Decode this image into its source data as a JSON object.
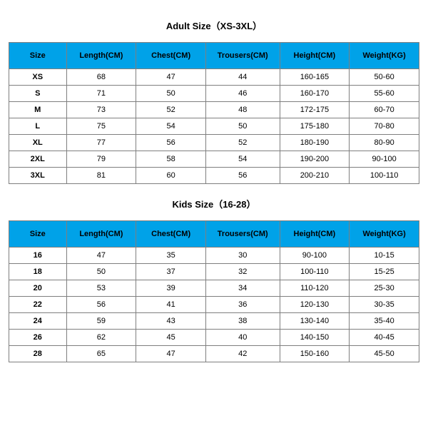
{
  "styling": {
    "header_bg": "#00a2e8",
    "border_color": "#7f7f7f",
    "text_color": "#000000",
    "title_fontsize": 13,
    "header_fontsize": 11,
    "cell_fontsize": 11,
    "col_widths_pct": [
      14,
      17,
      17,
      18,
      17,
      17
    ]
  },
  "adult": {
    "title": "Adult Size（XS-3XL）",
    "columns": [
      "Size",
      "Length(CM)",
      "Chest(CM)",
      "Trousers(CM)",
      "Height(CM)",
      "Weight(KG)"
    ],
    "rows": [
      [
        "XS",
        "68",
        "47",
        "44",
        "160-165",
        "50-60"
      ],
      [
        "S",
        "71",
        "50",
        "46",
        "160-170",
        "55-60"
      ],
      [
        "M",
        "73",
        "52",
        "48",
        "172-175",
        "60-70"
      ],
      [
        "L",
        "75",
        "54",
        "50",
        "175-180",
        "70-80"
      ],
      [
        "XL",
        "77",
        "56",
        "52",
        "180-190",
        "80-90"
      ],
      [
        "2XL",
        "79",
        "58",
        "54",
        "190-200",
        "90-100"
      ],
      [
        "3XL",
        "81",
        "60",
        "56",
        "200-210",
        "100-110"
      ]
    ]
  },
  "kids": {
    "title": "Kids Size（16-28）",
    "columns": [
      "Size",
      "Length(CM)",
      "Chest(CM)",
      "Trousers(CM)",
      "Height(CM)",
      "Weight(KG)"
    ],
    "rows": [
      [
        "16",
        "47",
        "35",
        "30",
        "90-100",
        "10-15"
      ],
      [
        "18",
        "50",
        "37",
        "32",
        "100-110",
        "15-25"
      ],
      [
        "20",
        "53",
        "39",
        "34",
        "110-120",
        "25-30"
      ],
      [
        "22",
        "56",
        "41",
        "36",
        "120-130",
        "30-35"
      ],
      [
        "24",
        "59",
        "43",
        "38",
        "130-140",
        "35-40"
      ],
      [
        "26",
        "62",
        "45",
        "40",
        "140-150",
        "40-45"
      ],
      [
        "28",
        "65",
        "47",
        "42",
        "150-160",
        "45-50"
      ]
    ]
  }
}
